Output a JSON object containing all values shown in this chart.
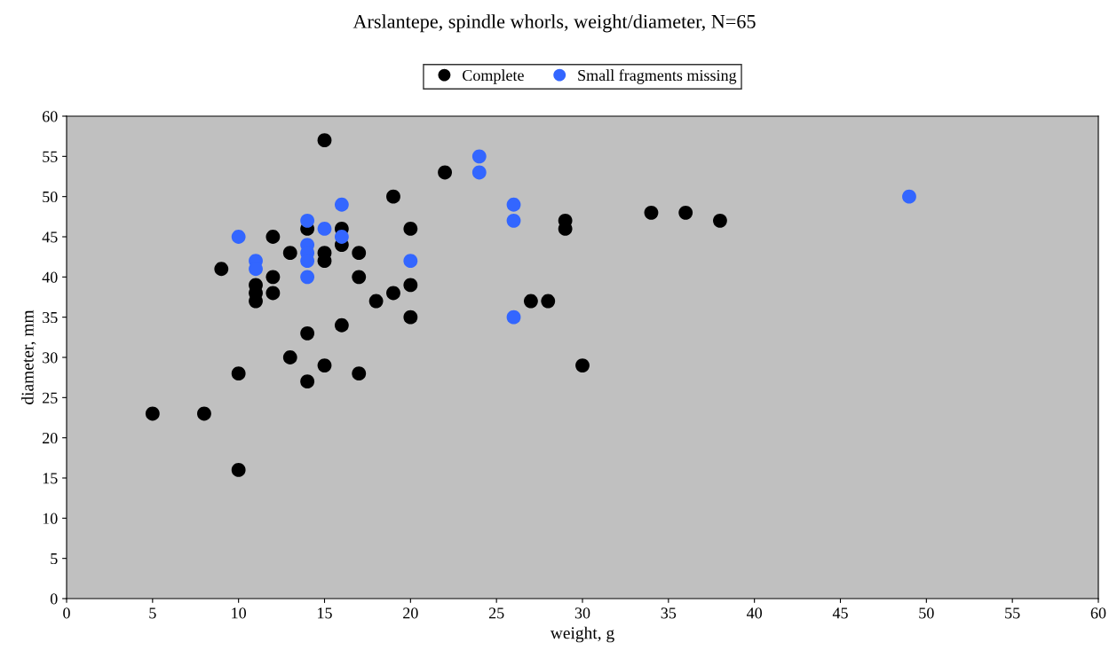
{
  "chart_data": {
    "type": "scatter",
    "title": "Arslantepe, spindle whorls, weight/diameter, N=65",
    "xlabel": "weight, g",
    "ylabel": "diameter, mm",
    "xlim": [
      0,
      60
    ],
    "xticks": [
      0,
      5,
      10,
      15,
      20,
      25,
      30,
      35,
      40,
      45,
      50,
      55,
      60
    ],
    "ylim": [
      0,
      60
    ],
    "yticks": [
      0,
      5,
      10,
      15,
      20,
      25,
      30,
      35,
      40,
      45,
      50,
      55,
      60
    ],
    "grid": false,
    "legend": "top",
    "marker": "circle",
    "series": [
      {
        "name": "Complete",
        "color": "#000000",
        "x": [
          5,
          8,
          9,
          10,
          10,
          11,
          11,
          11,
          12,
          12,
          12,
          13,
          13,
          14,
          14,
          14,
          15,
          15,
          15,
          15,
          16,
          16,
          16,
          17,
          17,
          17,
          18,
          19,
          19,
          20,
          20,
          20,
          22,
          27,
          28,
          29,
          29,
          30,
          34,
          36,
          38
        ],
        "values": [
          23,
          23,
          41,
          28,
          16,
          39,
          38,
          37,
          45,
          40,
          38,
          43,
          30,
          46,
          33,
          27,
          57,
          43,
          42,
          29,
          46,
          44,
          34,
          43,
          40,
          28,
          37,
          50,
          38,
          46,
          39,
          35,
          53,
          37,
          37,
          47,
          46,
          29,
          48,
          48,
          47
        ]
      },
      {
        "name": "Small fragments missing",
        "color": "#3366ff",
        "x": [
          10,
          11,
          11,
          14,
          14,
          14,
          14,
          14,
          15,
          16,
          16,
          20,
          24,
          24,
          26,
          26,
          26,
          49
        ],
        "values": [
          45,
          42,
          41,
          47,
          44,
          43,
          42,
          40,
          46,
          49,
          45,
          42,
          55,
          53,
          49,
          47,
          35,
          50
        ]
      }
    ]
  }
}
